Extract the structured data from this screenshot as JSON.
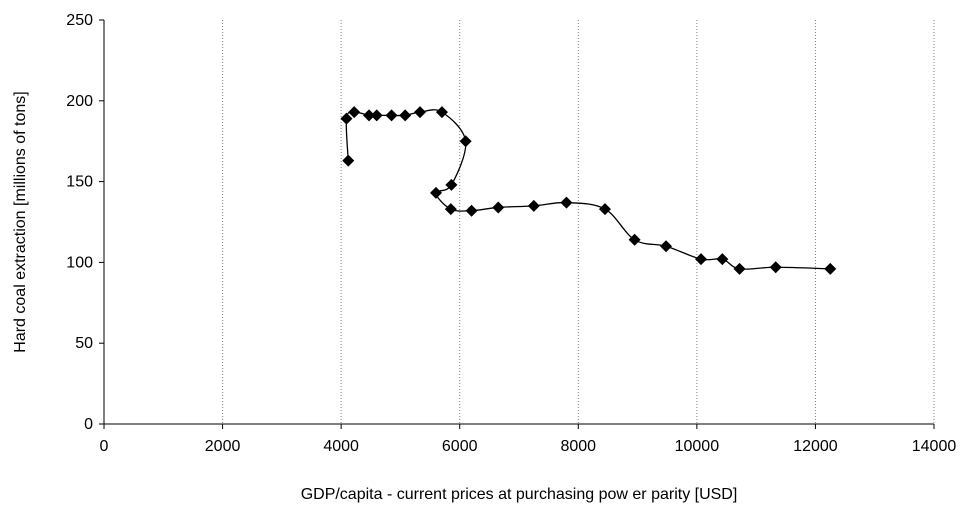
{
  "chart_data": {
    "type": "scatter",
    "xlabel": "GDP/capita - current prices at purchasing pow er parity [USD]",
    "ylabel": "Hard coal extraction [millions of tons]",
    "xlim": [
      0,
      14000
    ],
    "ylim": [
      0,
      250
    ],
    "x_ticks": [
      0,
      2000,
      4000,
      6000,
      8000,
      10000,
      12000,
      14000
    ],
    "y_ticks": [
      0,
      50,
      100,
      150,
      200,
      250
    ],
    "x_tick_labels": [
      "0",
      "2000",
      "4000",
      "6000",
      "8000",
      "10000",
      "12000",
      "14000"
    ],
    "y_tick_labels": [
      "0",
      "50",
      "100",
      "150",
      "200",
      "250"
    ],
    "grid": {
      "vertical": true,
      "horizontal": false,
      "style": "dotted"
    },
    "marker": "diamond",
    "smooth_line": true,
    "colors": {
      "line": "#000000",
      "marker": "#000000",
      "grid": "#808080"
    },
    "series": [
      {
        "points": [
          [
            4120,
            163
          ],
          [
            4090,
            189
          ],
          [
            4220,
            193
          ],
          [
            4470,
            191
          ],
          [
            4600,
            191
          ],
          [
            4850,
            191
          ],
          [
            5080,
            191
          ],
          [
            5330,
            193
          ],
          [
            5700,
            193
          ],
          [
            6100,
            175
          ],
          [
            5860,
            148
          ],
          [
            5600,
            143
          ],
          [
            5850,
            133
          ],
          [
            6200,
            132
          ],
          [
            6650,
            134
          ],
          [
            7250,
            135
          ],
          [
            7800,
            137
          ],
          [
            8450,
            133
          ],
          [
            8950,
            114
          ],
          [
            9480,
            110
          ],
          [
            10070,
            102
          ],
          [
            10430,
            102
          ],
          [
            10720,
            96
          ],
          [
            11330,
            97
          ],
          [
            12250,
            96
          ]
        ]
      }
    ]
  }
}
